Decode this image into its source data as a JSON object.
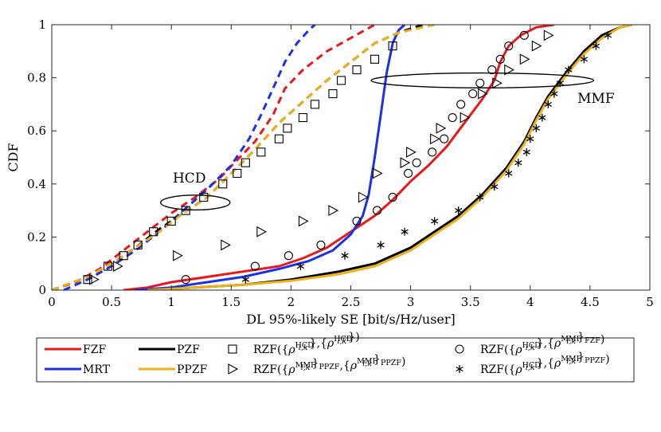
{
  "chart_data": {
    "type": "line",
    "xlabel": "DL 95%-likely SE [bit/s/Hz/user]",
    "ylabel": "CDF",
    "xlim": [
      0,
      5
    ],
    "ylim": [
      0,
      1
    ],
    "x_ticks": [
      "0",
      "0.5",
      "1",
      "1.5",
      "2",
      "2.5",
      "3",
      "3.5",
      "4",
      "4.5",
      "5"
    ],
    "y_ticks": [
      "0",
      "0.2",
      "0.4",
      "0.6",
      "0.8",
      "1"
    ],
    "grid": false,
    "legend_position": "bottom-outside",
    "annotations": [
      {
        "text": "HCD",
        "x": 1.15,
        "y": 0.405
      },
      {
        "text": "MMF",
        "x": 4.55,
        "y": 0.705
      }
    ],
    "ellipses": [
      {
        "name": "hcd-ellipse",
        "cx": 1.2,
        "cy": 0.33,
        "rx": 0.29,
        "ry": 0.028
      },
      {
        "name": "mmf-ellipse",
        "cx": 3.6,
        "cy": 0.79,
        "rx": 0.93,
        "ry": 0.028
      }
    ],
    "series": [
      {
        "name": "FZF",
        "label": "FZF",
        "group": "MMF",
        "color": "#e8191d",
        "dash": false,
        "points": [
          [
            0.6,
            0
          ],
          [
            0.8,
            0.01
          ],
          [
            1.0,
            0.03
          ],
          [
            1.3,
            0.05
          ],
          [
            1.6,
            0.07
          ],
          [
            1.9,
            0.09
          ],
          [
            2.1,
            0.12
          ],
          [
            2.3,
            0.16
          ],
          [
            2.5,
            0.22
          ],
          [
            2.7,
            0.28
          ],
          [
            2.85,
            0.34
          ],
          [
            3.0,
            0.41
          ],
          [
            3.15,
            0.47
          ],
          [
            3.3,
            0.54
          ],
          [
            3.4,
            0.6
          ],
          [
            3.5,
            0.66
          ],
          [
            3.6,
            0.72
          ],
          [
            3.7,
            0.79
          ],
          [
            3.75,
            0.86
          ],
          [
            3.82,
            0.92
          ],
          [
            3.92,
            0.96
          ],
          [
            4.05,
            0.99
          ],
          [
            4.2,
            1.0
          ]
        ]
      },
      {
        "name": "FZF-HCD",
        "label": "",
        "group": "HCD",
        "color": "#e8191d",
        "dash": true,
        "points": [
          [
            0,
            0
          ],
          [
            0.2,
            0.03
          ],
          [
            0.4,
            0.08
          ],
          [
            0.6,
            0.15
          ],
          [
            0.8,
            0.22
          ],
          [
            1.0,
            0.29
          ],
          [
            1.2,
            0.35
          ],
          [
            1.4,
            0.42
          ],
          [
            1.55,
            0.49
          ],
          [
            1.7,
            0.56
          ],
          [
            1.85,
            0.66
          ],
          [
            1.95,
            0.76
          ],
          [
            2.1,
            0.83
          ],
          [
            2.3,
            0.9
          ],
          [
            2.5,
            0.95
          ],
          [
            2.7,
            1.0
          ]
        ]
      },
      {
        "name": "MRT",
        "label": "MRT",
        "group": "MMF",
        "color": "#1c30e5",
        "dash": false,
        "points": [
          [
            0.7,
            0
          ],
          [
            1.0,
            0.01
          ],
          [
            1.3,
            0.03
          ],
          [
            1.6,
            0.05
          ],
          [
            1.9,
            0.08
          ],
          [
            2.15,
            0.11
          ],
          [
            2.35,
            0.15
          ],
          [
            2.5,
            0.21
          ],
          [
            2.6,
            0.28
          ],
          [
            2.65,
            0.36
          ],
          [
            2.7,
            0.5
          ],
          [
            2.75,
            0.66
          ],
          [
            2.8,
            0.82
          ],
          [
            2.85,
            0.93
          ],
          [
            2.9,
            0.98
          ],
          [
            2.95,
            1.0
          ]
        ]
      },
      {
        "name": "MRT-HCD",
        "label": "",
        "group": "HCD",
        "color": "#1c30e5",
        "dash": true,
        "points": [
          [
            0.1,
            0
          ],
          [
            0.3,
            0.04
          ],
          [
            0.5,
            0.09
          ],
          [
            0.7,
            0.15
          ],
          [
            0.9,
            0.22
          ],
          [
            1.1,
            0.3
          ],
          [
            1.3,
            0.38
          ],
          [
            1.5,
            0.47
          ],
          [
            1.65,
            0.57
          ],
          [
            1.75,
            0.66
          ],
          [
            1.85,
            0.76
          ],
          [
            1.95,
            0.86
          ],
          [
            2.05,
            0.93
          ],
          [
            2.15,
            0.98
          ],
          [
            2.2,
            1.0
          ]
        ]
      },
      {
        "name": "PZF",
        "label": "PZF",
        "group": "MMF",
        "color": "#000000",
        "dash": false,
        "points": [
          [
            0.8,
            0
          ],
          [
            1.2,
            0.01
          ],
          [
            1.6,
            0.02
          ],
          [
            2.0,
            0.04
          ],
          [
            2.4,
            0.07
          ],
          [
            2.7,
            0.1
          ],
          [
            3.0,
            0.16
          ],
          [
            3.2,
            0.22
          ],
          [
            3.4,
            0.28
          ],
          [
            3.6,
            0.36
          ],
          [
            3.8,
            0.46
          ],
          [
            3.95,
            0.56
          ],
          [
            4.05,
            0.65
          ],
          [
            4.15,
            0.73
          ],
          [
            4.3,
            0.82
          ],
          [
            4.45,
            0.9
          ],
          [
            4.6,
            0.96
          ],
          [
            4.75,
            0.99
          ],
          [
            4.85,
            1.0
          ]
        ]
      },
      {
        "name": "PZF-HCD",
        "label": "",
        "group": "HCD",
        "color": "#000000",
        "dash": true,
        "points": [
          [
            0,
            0
          ],
          [
            0.3,
            0.05
          ],
          [
            0.5,
            0.1
          ],
          [
            0.7,
            0.16
          ],
          [
            0.9,
            0.23
          ],
          [
            1.1,
            0.29
          ],
          [
            1.3,
            0.35
          ],
          [
            1.5,
            0.44
          ],
          [
            1.7,
            0.53
          ],
          [
            1.9,
            0.63
          ],
          [
            2.1,
            0.71
          ],
          [
            2.3,
            0.79
          ],
          [
            2.5,
            0.86
          ],
          [
            2.7,
            0.93
          ],
          [
            2.9,
            0.97
          ],
          [
            3.1,
            1.0
          ]
        ]
      },
      {
        "name": "PPZF",
        "label": "PPZF",
        "group": "MMF",
        "color": "#eab21b",
        "dash": false,
        "points": [
          [
            0.8,
            0
          ],
          [
            1.2,
            0.01
          ],
          [
            1.6,
            0.02
          ],
          [
            2.0,
            0.035
          ],
          [
            2.4,
            0.06
          ],
          [
            2.7,
            0.09
          ],
          [
            3.0,
            0.15
          ],
          [
            3.2,
            0.21
          ],
          [
            3.4,
            0.27
          ],
          [
            3.6,
            0.35
          ],
          [
            3.8,
            0.45
          ],
          [
            3.95,
            0.55
          ],
          [
            4.05,
            0.64
          ],
          [
            4.15,
            0.72
          ],
          [
            4.3,
            0.81
          ],
          [
            4.45,
            0.89
          ],
          [
            4.6,
            0.95
          ],
          [
            4.75,
            0.99
          ],
          [
            4.85,
            1.0
          ]
        ]
      },
      {
        "name": "PPZF-HCD",
        "label": "",
        "group": "HCD",
        "color": "#eab21b",
        "dash": true,
        "points": [
          [
            0,
            0
          ],
          [
            0.3,
            0.05
          ],
          [
            0.5,
            0.1
          ],
          [
            0.7,
            0.16
          ],
          [
            0.9,
            0.22
          ],
          [
            1.1,
            0.29
          ],
          [
            1.3,
            0.35
          ],
          [
            1.5,
            0.44
          ],
          [
            1.7,
            0.53
          ],
          [
            1.9,
            0.63
          ],
          [
            2.1,
            0.71
          ],
          [
            2.3,
            0.79
          ],
          [
            2.5,
            0.86
          ],
          [
            2.7,
            0.93
          ],
          [
            2.9,
            0.97
          ],
          [
            3.2,
            1.0
          ]
        ]
      }
    ],
    "markers": [
      {
        "name": "RZF-HCD-HCD",
        "label": "RZF({ρ_{l,k}^{HCD}},{ρ_{l,k}^{HCD}})",
        "shape": "square",
        "points": [
          [
            0.3,
            0.04
          ],
          [
            0.47,
            0.09
          ],
          [
            0.6,
            0.13
          ],
          [
            0.72,
            0.17
          ],
          [
            0.85,
            0.22
          ],
          [
            1.0,
            0.26
          ],
          [
            1.12,
            0.3
          ],
          [
            1.27,
            0.35
          ],
          [
            1.43,
            0.4
          ],
          [
            1.55,
            0.44
          ],
          [
            1.62,
            0.48
          ],
          [
            1.75,
            0.52
          ],
          [
            1.9,
            0.57
          ],
          [
            1.97,
            0.61
          ],
          [
            2.1,
            0.65
          ],
          [
            2.2,
            0.7
          ],
          [
            2.35,
            0.74
          ],
          [
            2.42,
            0.79
          ],
          [
            2.55,
            0.83
          ],
          [
            2.7,
            0.87
          ],
          [
            2.85,
            0.92
          ]
        ]
      },
      {
        "name": "RZF-MMF-PPZF",
        "label": "RZF({ρ_{l,k}^{MMF}}_{PPZF},{ρ_{l,k}^{MMF}}_{PPZF})",
        "shape": "triangle-right",
        "points": [
          [
            0.35,
            0.04
          ],
          [
            0.55,
            0.09
          ],
          [
            1.05,
            0.13
          ],
          [
            1.45,
            0.17
          ],
          [
            1.75,
            0.22
          ],
          [
            2.1,
            0.26
          ],
          [
            2.35,
            0.3
          ],
          [
            2.6,
            0.35
          ],
          [
            2.72,
            0.44
          ],
          [
            2.95,
            0.48
          ],
          [
            3.0,
            0.52
          ],
          [
            3.2,
            0.57
          ],
          [
            3.25,
            0.61
          ],
          [
            3.45,
            0.65
          ],
          [
            3.6,
            0.74
          ],
          [
            3.72,
            0.78
          ],
          [
            3.82,
            0.83
          ],
          [
            3.95,
            0.87
          ],
          [
            4.05,
            0.92
          ],
          [
            4.15,
            0.96
          ]
        ]
      },
      {
        "name": "RZF-HCD-MMF-FZF",
        "label": "RZF({ρ_{l,k}^{HCD}},{ρ_{l,k}^{MMF}}_{FZF})",
        "shape": "circle",
        "points": [
          [
            1.12,
            0.04
          ],
          [
            1.7,
            0.09
          ],
          [
            1.98,
            0.13
          ],
          [
            2.25,
            0.17
          ],
          [
            2.55,
            0.26
          ],
          [
            2.72,
            0.3
          ],
          [
            2.85,
            0.35
          ],
          [
            2.98,
            0.44
          ],
          [
            3.05,
            0.48
          ],
          [
            3.18,
            0.52
          ],
          [
            3.28,
            0.57
          ],
          [
            3.35,
            0.65
          ],
          [
            3.42,
            0.7
          ],
          [
            3.52,
            0.74
          ],
          [
            3.58,
            0.78
          ],
          [
            3.68,
            0.83
          ],
          [
            3.75,
            0.87
          ],
          [
            3.82,
            0.92
          ],
          [
            3.95,
            0.96
          ]
        ]
      },
      {
        "name": "RZF-HCD-MMF-PPZF",
        "label": "RZF({ρ_{l,k}^{HCD}},{ρ_{l,k}^{MMF}}_{PPZF})",
        "shape": "asterisk",
        "points": [
          [
            1.62,
            0.04
          ],
          [
            2.08,
            0.09
          ],
          [
            2.45,
            0.13
          ],
          [
            2.75,
            0.17
          ],
          [
            2.95,
            0.22
          ],
          [
            3.2,
            0.26
          ],
          [
            3.4,
            0.3
          ],
          [
            3.58,
            0.35
          ],
          [
            3.7,
            0.39
          ],
          [
            3.82,
            0.44
          ],
          [
            3.9,
            0.48
          ],
          [
            3.97,
            0.52
          ],
          [
            4.0,
            0.57
          ],
          [
            4.05,
            0.61
          ],
          [
            4.1,
            0.65
          ],
          [
            4.15,
            0.7
          ],
          [
            4.2,
            0.74
          ],
          [
            4.25,
            0.78
          ],
          [
            4.32,
            0.83
          ],
          [
            4.45,
            0.87
          ],
          [
            4.55,
            0.92
          ],
          [
            4.65,
            0.96
          ]
        ]
      }
    ]
  }
}
